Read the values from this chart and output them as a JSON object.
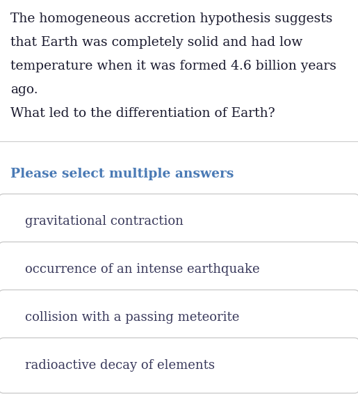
{
  "background_color": "#ffffff",
  "passage_color": "#1a1a2e",
  "passage_fontsize": 13.5,
  "divider_color": "#cccccc",
  "prompt_text": "Please select multiple answers",
  "prompt_color": "#4a7ab5",
  "prompt_fontsize": 13.5,
  "passage_lines": [
    "The homogeneous accretion hypothesis suggests",
    "that Earth was completely solid and had low",
    "temperature when it was formed 4.6 billion years",
    "ago.",
    "What led to the differentiation of Earth?"
  ],
  "options": [
    "gravitational contraction",
    "occurrence of an intense earthquake",
    "collision with a passing meteorite",
    "radioactive decay of elements"
  ],
  "option_fontsize": 13.0,
  "option_text_color": "#3a3a5c",
  "option_bg_color": "#ffffff",
  "option_border_color": "#cccccc",
  "fig_width": 5.15,
  "fig_height": 5.89
}
